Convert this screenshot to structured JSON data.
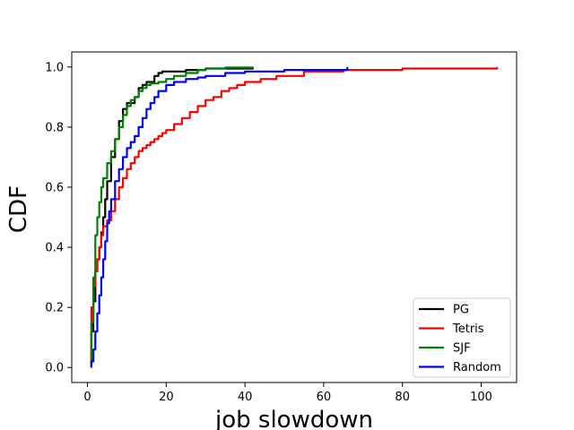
{
  "chart_data": {
    "type": "line",
    "title": "",
    "xlabel": "job slowdown",
    "ylabel": "CDF",
    "xlim": [
      -4,
      109
    ],
    "ylim": [
      -0.05,
      1.05
    ],
    "xticks": [
      0,
      20,
      40,
      60,
      80,
      100
    ],
    "yticks": [
      0.0,
      0.2,
      0.4,
      0.6,
      0.8,
      1.0
    ],
    "xtick_labels": [
      "0",
      "20",
      "40",
      "60",
      "80",
      "100"
    ],
    "ytick_labels": [
      "0.0",
      "0.2",
      "0.4",
      "0.6",
      "0.8",
      "1.0"
    ],
    "grid": false,
    "legend_position": "lower-right",
    "series": [
      {
        "name": "PG",
        "color": "#000000",
        "x": [
          1,
          1,
          1.5,
          2,
          2.5,
          3,
          3.5,
          4,
          4.5,
          5,
          6,
          7,
          8,
          9,
          10,
          11,
          12,
          13,
          14,
          15,
          16,
          17,
          18,
          19,
          20,
          22,
          25,
          28,
          30,
          42
        ],
        "y": [
          0.0,
          0.12,
          0.22,
          0.32,
          0.36,
          0.4,
          0.45,
          0.5,
          0.56,
          0.62,
          0.7,
          0.76,
          0.82,
          0.86,
          0.88,
          0.88,
          0.9,
          0.93,
          0.94,
          0.95,
          0.95,
          0.97,
          0.98,
          0.985,
          0.985,
          0.985,
          0.99,
          0.99,
          0.995,
          1.0
        ]
      },
      {
        "name": "Tetris",
        "color": "#ff0000",
        "x": [
          1,
          1,
          1.5,
          2,
          2.5,
          3,
          3.5,
          4,
          5,
          6,
          7,
          8,
          9,
          10,
          11,
          12,
          13,
          14,
          15,
          16,
          17,
          18,
          19,
          20,
          22,
          24,
          26,
          28,
          30,
          32,
          34,
          36,
          38,
          40,
          44,
          48,
          55,
          65,
          80,
          104
        ],
        "y": [
          0.0,
          0.2,
          0.27,
          0.32,
          0.36,
          0.4,
          0.44,
          0.47,
          0.49,
          0.52,
          0.56,
          0.6,
          0.63,
          0.66,
          0.68,
          0.7,
          0.72,
          0.73,
          0.74,
          0.75,
          0.76,
          0.77,
          0.78,
          0.79,
          0.81,
          0.83,
          0.85,
          0.87,
          0.89,
          0.9,
          0.92,
          0.93,
          0.94,
          0.95,
          0.96,
          0.97,
          0.985,
          0.99,
          0.995,
          1.0
        ]
      },
      {
        "name": "SJF",
        "color": "#008000",
        "x": [
          1,
          1,
          1.5,
          2,
          2.5,
          3,
          3.5,
          4,
          5,
          6,
          7,
          8,
          9,
          10,
          11,
          12,
          13,
          14,
          15,
          16,
          18,
          20,
          22,
          25,
          28,
          30,
          35,
          42
        ],
        "y": [
          0.0,
          0.15,
          0.3,
          0.44,
          0.5,
          0.55,
          0.6,
          0.63,
          0.68,
          0.72,
          0.76,
          0.8,
          0.84,
          0.87,
          0.89,
          0.9,
          0.92,
          0.93,
          0.94,
          0.945,
          0.95,
          0.96,
          0.97,
          0.98,
          0.99,
          0.995,
          0.998,
          1.0
        ]
      },
      {
        "name": "Random",
        "color": "#0000ff",
        "x": [
          1,
          1,
          1.5,
          2,
          2.5,
          3,
          3.5,
          4,
          4.5,
          5,
          5.5,
          6,
          7,
          8,
          9,
          10,
          11,
          12,
          13,
          14,
          15,
          16,
          17,
          18,
          20,
          22,
          25,
          28,
          30,
          35,
          40,
          50,
          66
        ],
        "y": [
          0.0,
          0.02,
          0.06,
          0.12,
          0.18,
          0.24,
          0.3,
          0.36,
          0.42,
          0.48,
          0.52,
          0.56,
          0.62,
          0.66,
          0.7,
          0.73,
          0.75,
          0.77,
          0.8,
          0.83,
          0.86,
          0.88,
          0.9,
          0.92,
          0.94,
          0.95,
          0.96,
          0.965,
          0.97,
          0.98,
          0.985,
          0.99,
          1.0
        ]
      }
    ]
  }
}
